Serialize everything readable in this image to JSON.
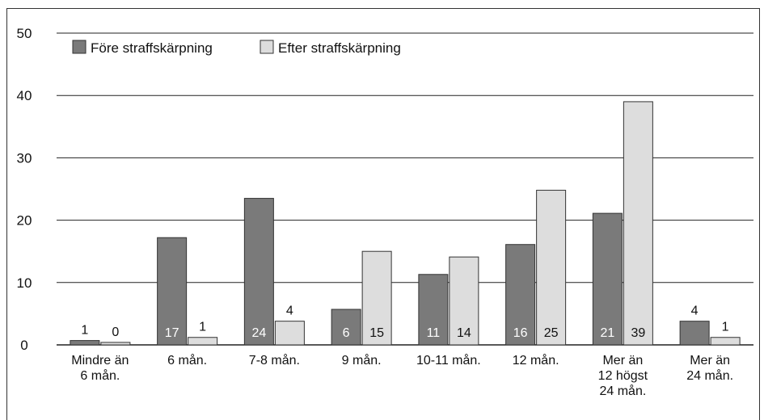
{
  "chart_data": {
    "type": "bar",
    "categories": [
      [
        "Mindre än",
        "6 mån."
      ],
      [
        "6 mån."
      ],
      [
        "7-8 mån."
      ],
      [
        "9 mån."
      ],
      [
        "10-11 mån."
      ],
      [
        "12 mån."
      ],
      [
        "Mer än",
        "12 högst",
        "24 mån."
      ],
      [
        "Mer än",
        "24 mån."
      ]
    ],
    "series": [
      {
        "name": "Före straffskärpning",
        "color": "#7a7a7a",
        "values": [
          0.7,
          17.2,
          23.5,
          5.7,
          11.3,
          16.1,
          21.1,
          3.8
        ],
        "labels": [
          "1",
          "17",
          "24",
          "6",
          "11",
          "16",
          "21",
          "4"
        ]
      },
      {
        "name": "Efter straffskärpning",
        "color": "#dddddd",
        "values": [
          0.4,
          1.2,
          3.8,
          15.0,
          14.1,
          24.8,
          39.0,
          1.2
        ],
        "labels": [
          "0",
          "1",
          "4",
          "15",
          "14",
          "25",
          "39",
          "1"
        ]
      }
    ],
    "yticks": [
      "0",
      "10",
      "20",
      "30",
      "40",
      "50"
    ],
    "ylim": [
      0,
      50
    ],
    "grid": true,
    "legend": "top-left"
  }
}
